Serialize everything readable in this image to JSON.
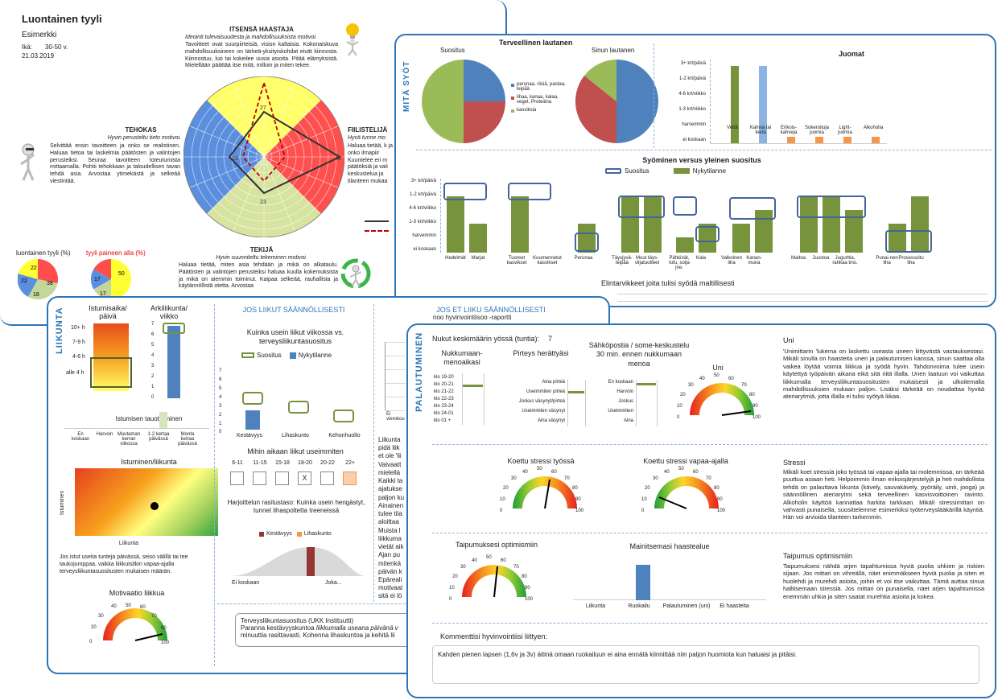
{
  "card1": {
    "title": "Luontainen tyyli",
    "subtitle": "Esimerkki",
    "age_label": "Ikä:",
    "age_value": "30-50 v.",
    "date": "21.03.2019",
    "haastaja": {
      "title": "ITSENSÄ HAASTAJA",
      "motto": "Ideointi tulevaisuudesta ja mahdollisuuksista motivoi.",
      "text": "Tavoitteet ovat suurpiirteisiä, vision kaltaisia. Kokonaiskuva mahdollisuuksineen on tärkeä-yksityiskohdat eivät kiinnosta. Kiinnostuu, luo tai kokeilee uusia asioita. Pitää elämyksistä. Mielellään päättää itse mitä, milloin ja miten tekee."
    },
    "tehokas": {
      "title": "TEHOKAS",
      "motto": "Hyvin perusteltu tieto motivoi.",
      "text": "Selvittää ensin tavoitteen ja onko se realistinen. Haluaa tietoa tai laskelmia päätösten ja valintojen perusteiksi. Seuraa tavoitteen toteutumista mittaamalla. Pohtii tehokkaan ja taloudellisen tavan tehdä asia. Arvostaa ytimekästä ja selkeää viestintää."
    },
    "fiilistelija": {
      "title": "FIILISTELIJÄ",
      "motto": "Hyvä tunne mo",
      "text": "Haluaa tietää, k ja onko ilmapiir Kuuntelee eri m päätöksiä ja vali keskustelua ja tilanteen mukaa"
    },
    "tekija": {
      "title": "TEKIJÄ",
      "motto": "Hyvin suunniteltu tekeminen motivoi.",
      "text": "Haluaa tietää, miten asia tehdään ja mikä on alkataulu. Päätösten ja valintojen perusteiksi haluaa kuulla kokemuksista ja mikä on aiemmin toiminut. Kaipaa selkeää, rauhallista ja käytännöllistä otetta. Arvostaa"
    },
    "radar_values": {
      "top": "27",
      "right": "48",
      "bottom": "23",
      "left": "23"
    },
    "pie1_title": "luontainen tyyli (%)",
    "pie1_values": [
      "22",
      "22",
      "38",
      "18"
    ],
    "pie2_title": "tyyli paineen alla (%)",
    "pie2_values": [
      "50",
      "17",
      "17"
    ]
  },
  "card2": {
    "side_label": "MITÄ SYÖT",
    "plate_title": "Terveellinen lautanen",
    "rec_label": "Suositus",
    "yours_label": "Sinun lautanen",
    "plate_legend": [
      "perunaa, riisiä, pastaa, leipää",
      "lihaa, kanaa, kalaa, veget. Proteiinia",
      "kasviksia"
    ],
    "drinks_title": "Juomat",
    "drinks_y": [
      "3+ krt/päivä",
      "1-2 krt/päivä",
      "4-6 krt/viikko",
      "1-3 krt/viikko",
      "harvemmin",
      "ei koskaan"
    ],
    "drinks_x": [
      "Vettä",
      "Kahvia tai teetä",
      "Erikois-kahveja",
      "Sokeroituja juomia",
      "Light-juomia",
      "Alkoholia"
    ],
    "eating_title": "Syöminen versus yleinen suositus",
    "eating_legend": [
      "Suositus",
      "Nykytilanne"
    ],
    "eating_y": [
      "3+ krt/päivä",
      "1-2 krt/päivä",
      "4-6 krt/viikko",
      "1-3 krt/viikko",
      "harvemmin",
      "ei koskaan"
    ],
    "eating_x": [
      "Hedelmät",
      "Marjat",
      "Tuoreet kasvikset",
      "Kuumennetut kasvikset",
      "Perunaa",
      "Täysjyvä-leipää",
      "Muut täys-viljatuotteet",
      "Pähkinät, tofu, soija jne.",
      "Kala",
      "Valkoinen liha",
      "Kanan-muna",
      "Maitoa",
      "Juustoa",
      "Jugurttia, rahkaa tms.",
      "Punai-nen liha",
      "Prosessoitu liha"
    ],
    "moderate_title": "Elintarvikkeet joita tulisi syödä maltillisesti"
  },
  "card3": {
    "side_label": "LIIKUNTA",
    "sit_title": "Istumisaika/ päivä",
    "sit_levels": [
      "10+ h",
      "7-9 h",
      "4-6 h",
      "alle 4 h"
    ],
    "daily_title": "Arkiliikunta/ viikko",
    "daily_ticks": [
      "7",
      "6",
      "5",
      "4",
      "3",
      "2",
      "1",
      "0"
    ],
    "break_title": "Istumisen tauottaminen",
    "break_x": [
      "En koskaan",
      "Harvoin",
      "Muutaman kerran viikossa",
      "1-2 kertaa päivässä",
      "Monta kertaa päivässä"
    ],
    "sitmove_title": "Istuminen/liikunta",
    "sitmove_y": "Istuminen",
    "sitmove_x": "Liikunta",
    "sit_text": "Jos istut useita tunteja päivässä, seiso välillä tai tee taukojumppaa, vaikka liikkuisitkin vapaa-ajalla terveysliikuntasuositusten mukaisen määrän.",
    "motivation_title": "Motivaatio liikkua",
    "gauge_ticks": [
      "0",
      "10",
      "20",
      "30",
      "40",
      "50",
      "60",
      "70",
      "80",
      "90",
      "100"
    ],
    "regular_title": "JOS LIIKUT SÄÄNNÖLLISESTI",
    "freq_title": "Kuinka usein liikut viikossa vs. terveysliikuntasuositus",
    "freq_legend": [
      "Suositus",
      "Nykytilanne"
    ],
    "freq_y": [
      "7",
      "6",
      "5",
      "4",
      "3",
      "2",
      "1",
      "0"
    ],
    "freq_x": [
      "Kestävyys",
      "Lihaskunto",
      "Kehonhuolto"
    ],
    "time_title": "Mihin aikaan liikut useimmiten",
    "time_slots": [
      "6-11",
      "11-15",
      "15-18",
      "18-20",
      "20-22",
      "22+"
    ],
    "time_mark": "X",
    "intensity_title": "Harjoittelun rasitustaso: Kuinka usein hengästyt, tunnet lihaspoltetta treeneissä",
    "intensity_legend": [
      "Kestävyys",
      "Lihaskunto"
    ],
    "intensity_x": [
      "Ei koskaan",
      "Joka..."
    ],
    "ukk_title": "Terveysliikuntasuositus (UKK Instituutti)",
    "ukk_line1a": "Paranna kestävyyskuntoa ",
    "ukk_line1b": "liikkumalla useana päivänä v",
    "ukk_line2": "minuuttia rasittavasti. Kohenna lihaskuntoa ja kehitä lii",
    "irregular_title": "JOS ET LIIKU SÄÄNNÖLLISESTI",
    "irregular_top": "noo hyvinvointiisoo -raportti",
    "irregular_xlabel": "Ei vierokou",
    "irregular_text": [
      "Liikunta",
      "pidä liik",
      "et ole 'lii",
      "Vaivaatt",
      "mielellä",
      "Kaikki ta",
      "ajatukse",
      "paljon ku",
      "Ainainen",
      "tulee tila",
      "aloittaa",
      "Muista l",
      "liikkuma",
      "vietät aik",
      "Ajan pu",
      "mitenkä",
      "päivän k",
      "Epäreali",
      "motivaat",
      "sitä ei lö"
    ]
  },
  "card4": {
    "side_label": "PALAUTUMINEN",
    "sleep_label": "Nukut keskimäärin yössä (tuntia):",
    "sleep_value": "7",
    "bedtime_title": "Nukkumaan-menoaikasi",
    "bedtime_items": [
      "klo 19-20",
      "klo 20-21",
      "klo 21-22",
      "klo 22-23",
      "klo 23-24",
      "klo 24-01",
      "klo 01 +"
    ],
    "alert_title": "Pirteys herättyäsi",
    "alert_items": [
      "Aina pirteä",
      "Useimmiten pirteä",
      "Joskus väsynyt/pirteä",
      "Useimmiten väsynyt",
      "Aina väsynyt"
    ],
    "email_title": "Sähköpostia / some-keskustelu 30 min. ennen nukkumaan menoa",
    "email_items": [
      "En koskaan",
      "Harvoin",
      "Joskus",
      "Useimmiten",
      "Aina"
    ],
    "uni_gauge_title": "Uni",
    "gauge_ticks": [
      "0",
      "10",
      "20",
      "30",
      "40",
      "50",
      "60",
      "70",
      "80",
      "90",
      "100"
    ],
    "uni_title": "Uni",
    "uni_text": "'Unimittarin 'lukema on laskettu useasta uneen liittyvästä vastauksestasi. Mikäli sinulla on haasteita unen ja palautumisen kanssa, sinun saattaa olla vaikea löytää voimia liikkua ja syödä hyvin. Tahdonvoima tulee usein käytettyä työpäivän aikana eikä sitä riitä illalla. Unen laatuun voi vaikuttaa liikkumalla terveysliikuntasuositusten mukaisesti ja ulkoilemalla mahdollisuuksien mukaan paljon. Lisäksi tärkeää on noudattaa hyvää ateriarytmiä, jotta illalla ei tulisi syötyä liikaa.",
    "stress_work_title": "Koettu stressi työssä",
    "stress_free_title": "Koettu stressi vapaa-ajalla",
    "stress_title": "Stressi",
    "stress_text": "Mikäli koet stressiä joko työssä tai vapaa-ajalla tai molemmissa, on tärkeää puuttua asiaan heti. Helpoimmin ilman erikoisjärjestelyjä ja heti mahdollista tehdä on palauttava liikunta (kävely, sauvakävely, pyöräily, uinti, jooga) ja säännöllinen ateriarytmi sekä terveellinen kasvisvoittoinen ravinto. Alkoholin käyttöä kannattaa harkita tarkkaan. Mikäli stressimittari on vahvasti punaisella, suosittelemme esimerkiksi työterveyslääkärillä käyntiä. Hän voi arvioida tilanteen tarkemmin.",
    "opt_gauge_title": "Taipumuksesi optimismiin",
    "challenge_title": "Mainitsemasi haastealue",
    "challenge_x": [
      "Liikunta",
      "Ruokailu",
      "Palautuminen (uni)",
      "Ei haasteita"
    ],
    "opt_title": "Taipumus optimismiin",
    "opt_text": "Taipumuksesi nähdä arjen tapahtumissa hyviä puolia uhkien ja riskien sijaan. Jos mittari on vihreällä, näet enimmäkseen hyviä puolia ja siten et huolehdi ja murehdi asioita, joihin et voi itse vaikuttaa. Tämä auttaa sinua hallitsemaan stressiä. Jos mittari on punaisella, näet arjen tapahtumissa enemmän uhkia ja siten saatat murehtia asioita ja kokea",
    "comment_title": "Kommenttisi hyvinvointiisi liittyen:",
    "comment_text": "Kahden pienen lapsen (1,6v ja 3v) äitinä omaan ruokailuun ei aina ennätä kiinnittää niin paljon huomiota kun haluaisi ja pitäisi."
  },
  "chart_data": [
    {
      "type": "radar",
      "categories": [
        "ITSENSÄ HAASTAJA",
        "FIILISTELIJÄ",
        "TEKIJÄ",
        "TEHOKAS"
      ],
      "values": [
        27,
        48,
        23,
        23
      ]
    },
    {
      "type": "pie",
      "title": "luontainen tyyli (%)",
      "values": [
        22,
        22,
        38,
        18
      ]
    },
    {
      "type": "pie",
      "title": "tyyli paineen alla (%)",
      "values": [
        50,
        17,
        17
      ]
    },
    {
      "type": "bar",
      "title": "Juomat",
      "categories": [
        "Vettä",
        "Kahvia tai teetä",
        "Erikois-kahveja",
        "Sokeroituja juomia",
        "Light-juomia",
        "Alkoholia"
      ],
      "values": [
        5,
        5,
        1,
        1,
        1,
        1
      ]
    },
    {
      "type": "bar",
      "title": "Kuinka usein liikut viikossa vs. terveysliikuntasuositus",
      "categories": [
        "Kestävyys",
        "Lihaskunto",
        "Kehonhuolto"
      ],
      "values": [
        2,
        0,
        0
      ],
      "ylim": [
        0,
        7
      ]
    },
    {
      "type": "bar",
      "title": "Mainitsemasi haastealue",
      "categories": [
        "Liikunta",
        "Ruokailu",
        "Palautuminen (uni)",
        "Ei haasteita"
      ],
      "values": [
        0,
        1,
        0,
        0
      ]
    }
  ],
  "colors": {
    "accent": "#2e75b6",
    "green": "#77933c",
    "red": "#c0504d",
    "yellow": "#ffff66"
  }
}
